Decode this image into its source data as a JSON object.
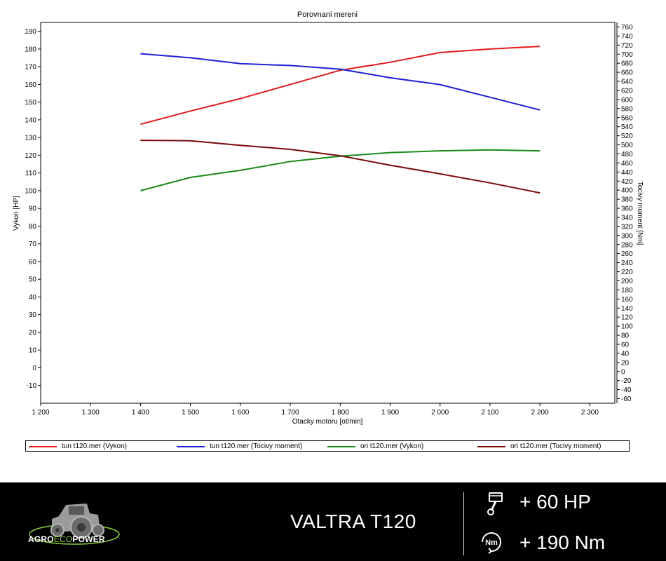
{
  "chart_data": {
    "type": "line",
    "title": "Porovnani mereni",
    "xlabel": "Otacky motoru [ot/min]",
    "ylabel_left": "Vykon [HP]",
    "ylabel_right": "Tocivy moment [Nm]",
    "xlim": [
      1200,
      2350
    ],
    "ylim_left": [
      -20,
      195
    ],
    "ylim_right": [
      -70,
      770
    ],
    "x_ticks": [
      1200,
      1300,
      1400,
      1500,
      1600,
      1700,
      1800,
      1900,
      2000,
      2100,
      2200,
      2300
    ],
    "x_tick_labels": [
      "1 200",
      "1 300",
      "1 400",
      "1 500",
      "1 600",
      "1 700",
      "1 800",
      "1 900",
      "2 000",
      "2 100",
      "2 200",
      "2 300"
    ],
    "y_left_ticks": [
      190,
      180,
      170,
      160,
      150,
      140,
      130,
      120,
      110,
      100,
      90,
      80,
      70,
      60,
      50,
      40,
      30,
      20,
      10,
      0,
      -10
    ],
    "y_right_ticks": [
      760,
      740,
      720,
      700,
      680,
      660,
      640,
      620,
      600,
      580,
      560,
      540,
      520,
      500,
      480,
      460,
      440,
      420,
      400,
      380,
      360,
      340,
      320,
      300,
      280,
      260,
      240,
      220,
      200,
      180,
      160,
      140,
      120,
      100,
      80,
      60,
      40,
      20,
      0,
      -20,
      -40,
      -60
    ],
    "grid": false,
    "legend_position": "bottom",
    "series": [
      {
        "name": "tun t120.mer  (Vykon)",
        "axis": "left",
        "color": "#e41a1c",
        "x": [
          1400,
          1500,
          1600,
          1700,
          1800,
          1900,
          2000,
          2100,
          2200
        ],
        "y": [
          137.5,
          145,
          152,
          160,
          168,
          172.5,
          178,
          180,
          181.5
        ]
      },
      {
        "name": "tun t120.mer  (Tocivy moment)",
        "axis": "right",
        "color": "#1f1fd6",
        "x": [
          1400,
          1500,
          1600,
          1700,
          1800,
          1900,
          2000,
          2100,
          2200
        ],
        "y": [
          701,
          692,
          679,
          675,
          667,
          648,
          633,
          605,
          577
        ]
      },
      {
        "name": "ori t120.mer  (Vykon)",
        "axis": "left",
        "color": "#1a8a1a",
        "x": [
          1400,
          1500,
          1600,
          1700,
          1800,
          1900,
          2000,
          2100,
          2200
        ],
        "y": [
          100,
          107.5,
          111.5,
          116.5,
          119.5,
          121.5,
          122.5,
          123,
          122.5
        ]
      },
      {
        "name": "ori t120.mer  (Tocivy moment)",
        "axis": "right",
        "color": "#7a0a0a",
        "x": [
          1400,
          1500,
          1600,
          1700,
          1800,
          1900,
          2000,
          2100,
          2200
        ],
        "y": [
          510,
          509,
          499,
          490,
          476,
          455,
          436,
          416,
          394
        ]
      }
    ]
  },
  "footer": {
    "brand_parts": [
      "AGRO",
      "ECO",
      "POWER"
    ],
    "model": "VALTRA T120",
    "power_gain": "+ 60 HP",
    "torque_gain": "+ 190 Nm",
    "torque_icon_text": "Nm",
    "background_color": "#000000",
    "accent_color": "#8fd13f"
  }
}
